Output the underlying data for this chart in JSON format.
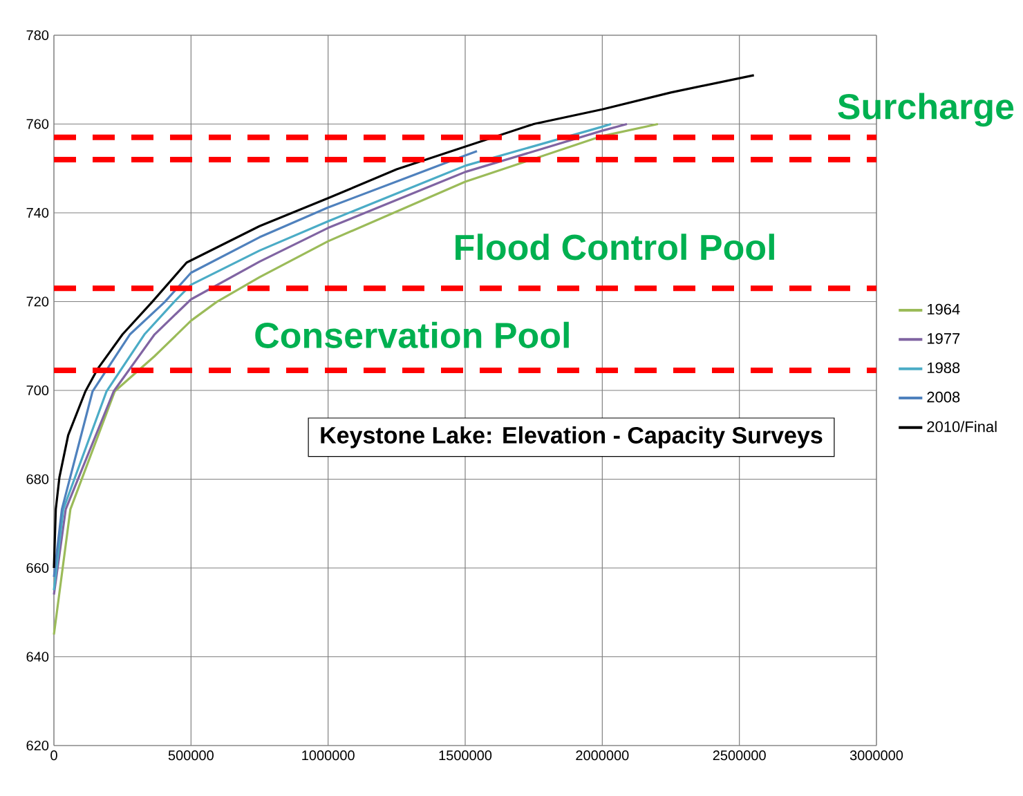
{
  "chart_data": {
    "type": "line",
    "title": "Keystone Lake:  Elevation - Capacity Surveys",
    "xlim": [
      0,
      3000000
    ],
    "ylim": [
      620,
      780
    ],
    "xticks": [
      0,
      500000,
      1000000,
      1500000,
      2000000,
      2500000,
      3000000
    ],
    "yticks": [
      620,
      640,
      660,
      680,
      700,
      720,
      740,
      760,
      780
    ],
    "grid": true,
    "legend": "right",
    "marker": "none",
    "line_style": "solid",
    "series": [
      {
        "name": "1964",
        "color": "#9bbb59",
        "x": [
          0,
          60000,
          222000,
          367000,
          500000,
          593000,
          750000,
          1000000,
          1500000,
          2000000,
          2203000
        ],
        "values": [
          645,
          673.2,
          699.8,
          707.7,
          715.7,
          719.9,
          725.5,
          733.6,
          747,
          757.3,
          760
        ]
      },
      {
        "name": "1977",
        "color": "#8064a2",
        "x": [
          0,
          43000,
          218000,
          367000,
          500000,
          750000,
          1000000,
          1500000,
          2000000,
          2090000
        ],
        "values": [
          654,
          673.2,
          699.8,
          712.6,
          720.5,
          729,
          736.6,
          749.2,
          758.5,
          760
        ]
      },
      {
        "name": "1988",
        "color": "#4bacc6",
        "x": [
          0,
          34000,
          192000,
          330000,
          438000,
          500000,
          750000,
          1000000,
          1500000,
          2000000,
          2032000
        ],
        "values": [
          655,
          673.2,
          699.8,
          712.6,
          719.9,
          723.8,
          731.5,
          738.1,
          750.6,
          759.4,
          760
        ]
      },
      {
        "name": "2008",
        "color": "#4f81bd",
        "x": [
          0,
          29000,
          141000,
          277000,
          404000,
          500000,
          750000,
          1000000,
          1500000,
          1543000
        ],
        "values": [
          658,
          673.2,
          699.8,
          712.6,
          719.9,
          726.5,
          734.5,
          741.2,
          752.9,
          753.9
        ]
      },
      {
        "name": "2010/Final",
        "color": "#000000",
        "x": [
          0,
          6800,
          20000,
          52000,
          115000,
          159000,
          250000,
          358000,
          484000,
          750000,
          1000000,
          1250000,
          1500000,
          1750000,
          2000000,
          2250000,
          2553000
        ],
        "values": [
          660,
          673.2,
          680.4,
          689.9,
          699.8,
          704.8,
          712.6,
          719.9,
          728.8,
          737,
          743.3,
          749.8,
          754.9,
          760,
          763.3,
          767.1,
          771
        ]
      }
    ],
    "ref_lines": [
      {
        "axis": "y",
        "value": 757,
        "color": "#ff0000",
        "line_style": "dashed"
      },
      {
        "axis": "y",
        "value": 752,
        "color": "#ff0000",
        "line_style": "dashed"
      },
      {
        "axis": "y",
        "value": 723,
        "color": "#ff0000",
        "line_style": "dashed"
      },
      {
        "axis": "y",
        "value": 704.5,
        "color": "#ff0000",
        "line_style": "dashed"
      }
    ],
    "annotations": [
      "Surcharge",
      "Flood Control Pool",
      "Conservation Pool"
    ]
  }
}
